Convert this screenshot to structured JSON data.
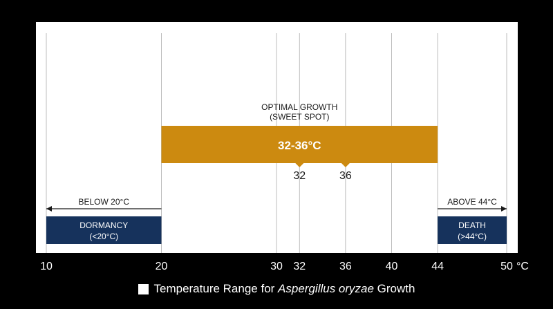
{
  "chart_data": {
    "type": "range",
    "unit_label": "°C",
    "x_ticks": [
      10,
      20,
      30,
      32,
      36,
      40,
      44,
      50
    ],
    "gridlines": [
      20,
      30,
      32,
      36,
      40,
      44
    ],
    "x_range": [
      10,
      50
    ],
    "colors": {
      "background": "#000000",
      "panel": "#ffffff",
      "optimal": "#cc8a10",
      "zone": "#16325c",
      "grid": "#bcbcbc",
      "text": "#1a1a1a"
    },
    "optimal": {
      "title_line1": "OPTIMAL GROWTH",
      "title_line2": "(SWEET SPOT)",
      "label": "32-36°C",
      "from": 20,
      "to": 44,
      "markers": [
        {
          "value": 32,
          "label": "32"
        },
        {
          "value": 36,
          "label": "36"
        }
      ]
    },
    "zones": [
      {
        "key": "dormancy",
        "from": 10,
        "to": 20,
        "line1": "DORMANCY",
        "line2": "(<20°C)",
        "arrow_label": "BELOW 20°C",
        "arrow_direction": "left"
      },
      {
        "key": "death",
        "from": 44,
        "to": 50,
        "line1": "DEATH",
        "line2": "(>44°C)",
        "arrow_label": "ABOVE 44°C",
        "arrow_direction": "right"
      }
    ]
  },
  "legend": {
    "prefix": "Temperature Range for ",
    "species": "Aspergillus oryzae",
    "suffix": " Growth"
  }
}
